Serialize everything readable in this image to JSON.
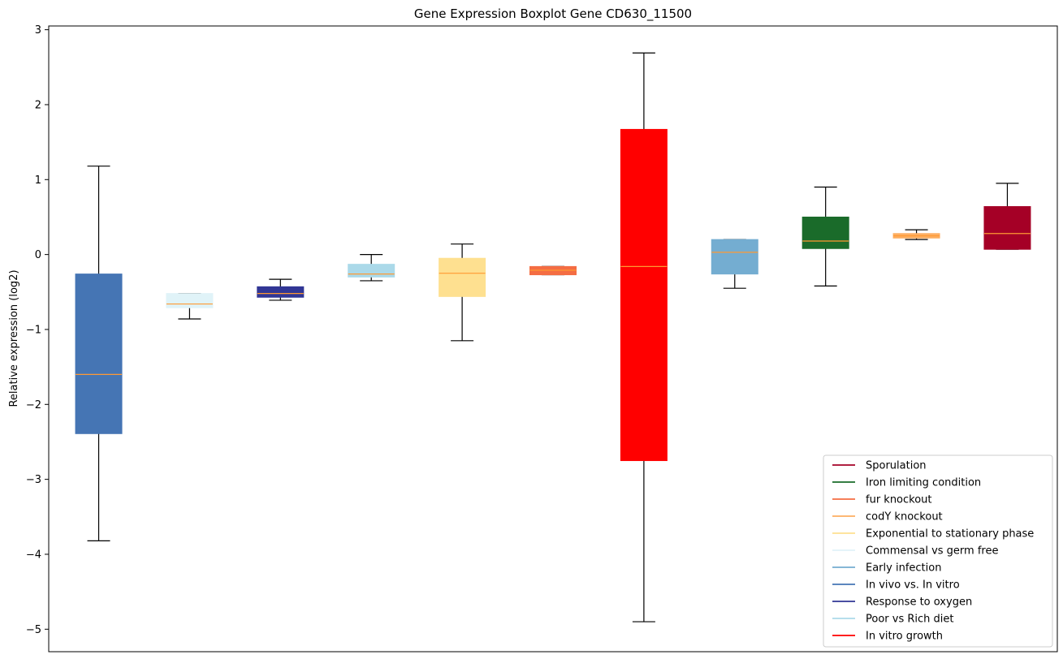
{
  "chart_data": {
    "type": "boxplot",
    "title": "Gene Expression Boxplot Gene CD630_11500",
    "ylabel": "Relative expression (log2)",
    "ylim": [
      -5.3,
      3.05
    ],
    "yticks": [
      3,
      2,
      1,
      0,
      -1,
      -2,
      -3,
      -4,
      -5
    ],
    "ytick_labels": [
      "3",
      "2",
      "1",
      "0",
      "−1",
      "−2",
      "−3",
      "−4",
      "−5"
    ],
    "grid": false,
    "legend_position": "lower-right",
    "median_color": "#ff9933",
    "series": [
      {
        "color": "#4575b4",
        "whisker_low": -3.82,
        "q1": -2.39,
        "median": -1.6,
        "q3": -0.26,
        "whisker_high": 1.18
      },
      {
        "color": "#e0f3f8",
        "whisker_low": -0.86,
        "q1": -0.71,
        "median": -0.66,
        "q3": -0.52,
        "whisker_high": -0.52
      },
      {
        "color": "#313695",
        "whisker_low": -0.61,
        "q1": -0.57,
        "median": -0.52,
        "q3": -0.43,
        "whisker_high": -0.33
      },
      {
        "color": "#abd9e9",
        "whisker_low": -0.35,
        "q1": -0.3,
        "median": -0.26,
        "q3": -0.13,
        "whisker_high": 0.0
      },
      {
        "color": "#fee090",
        "whisker_low": -1.15,
        "q1": -0.56,
        "median": -0.25,
        "q3": -0.05,
        "whisker_high": 0.14
      },
      {
        "color": "#f46d43",
        "whisker_low": -0.27,
        "q1": -0.27,
        "median": -0.21,
        "q3": -0.16,
        "whisker_high": -0.16
      },
      {
        "color": "#ff0000",
        "whisker_low": -4.9,
        "q1": -2.75,
        "median": -0.16,
        "q3": 1.67,
        "whisker_high": 2.69
      },
      {
        "color": "#74add1",
        "whisker_low": -0.45,
        "q1": -0.26,
        "median": 0.03,
        "q3": 0.2,
        "whisker_high": 0.2
      },
      {
        "color": "#1a6b2a",
        "whisker_low": -0.42,
        "q1": 0.08,
        "median": 0.18,
        "q3": 0.5,
        "whisker_high": 0.9
      },
      {
        "color": "#fdae61",
        "whisker_low": 0.2,
        "q1": 0.22,
        "median": 0.25,
        "q3": 0.28,
        "whisker_high": 0.33
      },
      {
        "color": "#a50026",
        "whisker_low": 0.07,
        "q1": 0.07,
        "median": 0.28,
        "q3": 0.64,
        "whisker_high": 0.95
      }
    ],
    "legend": [
      {
        "name": "Sporulation",
        "color": "#a50026"
      },
      {
        "name": "Iron limiting condition",
        "color": "#1a6b2a"
      },
      {
        "name": "fur knockout",
        "color": "#f46d43"
      },
      {
        "name": "codY knockout",
        "color": "#fdae61"
      },
      {
        "name": "Exponential to stationary phase",
        "color": "#fee090"
      },
      {
        "name": "Commensal vs germ free",
        "color": "#e0f3f8"
      },
      {
        "name": "Early infection",
        "color": "#74add1"
      },
      {
        "name": "In vivo vs. In vitro",
        "color": "#4575b4"
      },
      {
        "name": "Response to oxygen",
        "color": "#313695"
      },
      {
        "name": "Poor vs Rich diet",
        "color": "#abd9e9"
      },
      {
        "name": "In vitro growth",
        "color": "#ff0000"
      }
    ]
  }
}
